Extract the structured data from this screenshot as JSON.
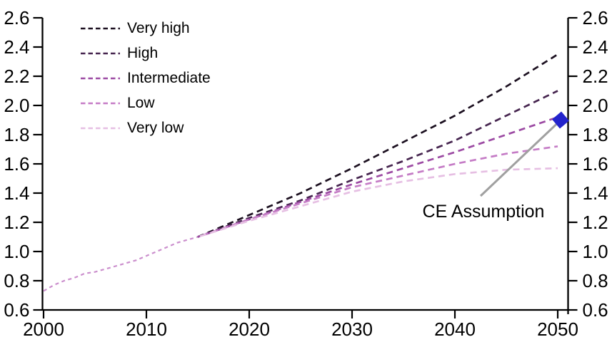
{
  "chart_data": {
    "type": "line",
    "title": "",
    "xlabel": "",
    "ylabel": "",
    "xlim": [
      2000,
      2051
    ],
    "ylim": [
      0.6,
      2.6
    ],
    "x_ticks": [
      2000,
      2010,
      2020,
      2030,
      2040,
      2050
    ],
    "y_ticks": [
      0.6,
      0.8,
      1.0,
      1.2,
      1.4,
      1.6,
      1.8,
      2.0,
      2.2,
      2.4,
      2.6
    ],
    "grid": false,
    "legend_position": "top-left",
    "axis_color": "#000000",
    "history": {
      "color": "#cb8ecd",
      "points": [
        [
          2000,
          0.73
        ],
        [
          2001,
          0.77
        ],
        [
          2002,
          0.8
        ],
        [
          2003,
          0.82
        ],
        [
          2004,
          0.85
        ],
        [
          2005,
          0.86
        ],
        [
          2006,
          0.88
        ],
        [
          2007,
          0.9
        ],
        [
          2008,
          0.92
        ],
        [
          2009,
          0.94
        ],
        [
          2010,
          0.97
        ],
        [
          2011,
          1.0
        ],
        [
          2012,
          1.03
        ],
        [
          2013,
          1.06
        ],
        [
          2014,
          1.08
        ],
        [
          2015,
          1.1
        ]
      ]
    },
    "series": [
      {
        "name": "Very high",
        "color": "#1c1020",
        "points": [
          [
            2015,
            1.1
          ],
          [
            2020,
            1.25
          ],
          [
            2025,
            1.4
          ],
          [
            2030,
            1.57
          ],
          [
            2035,
            1.75
          ],
          [
            2040,
            1.93
          ],
          [
            2045,
            2.13
          ],
          [
            2050,
            2.35
          ]
        ]
      },
      {
        "name": "High",
        "color": "#46254f",
        "points": [
          [
            2015,
            1.1
          ],
          [
            2020,
            1.23
          ],
          [
            2025,
            1.35
          ],
          [
            2030,
            1.49
          ],
          [
            2035,
            1.62
          ],
          [
            2040,
            1.76
          ],
          [
            2045,
            1.93
          ],
          [
            2050,
            2.1
          ]
        ]
      },
      {
        "name": "Intermediate",
        "color": "#9c4aa3",
        "points": [
          [
            2015,
            1.1
          ],
          [
            2020,
            1.22
          ],
          [
            2025,
            1.34
          ],
          [
            2030,
            1.46
          ],
          [
            2035,
            1.57
          ],
          [
            2040,
            1.68
          ],
          [
            2045,
            1.8
          ],
          [
            2050,
            1.92
          ]
        ]
      },
      {
        "name": "Low",
        "color": "#c57cc6",
        "points": [
          [
            2015,
            1.1
          ],
          [
            2020,
            1.22
          ],
          [
            2025,
            1.33
          ],
          [
            2030,
            1.44
          ],
          [
            2035,
            1.52
          ],
          [
            2040,
            1.6
          ],
          [
            2045,
            1.67
          ],
          [
            2050,
            1.72
          ]
        ]
      },
      {
        "name": "Very low",
        "color": "#e6bfe3",
        "points": [
          [
            2015,
            1.1
          ],
          [
            2020,
            1.21
          ],
          [
            2025,
            1.31
          ],
          [
            2030,
            1.41
          ],
          [
            2035,
            1.48
          ],
          [
            2040,
            1.53
          ],
          [
            2045,
            1.56
          ],
          [
            2050,
            1.57
          ]
        ]
      }
    ],
    "annotation": {
      "label": "CE Assumption",
      "year": 2050,
      "value": 1.9,
      "marker": "diamond",
      "marker_color": "#2323cc",
      "line_color": "#a0a0a0"
    }
  }
}
